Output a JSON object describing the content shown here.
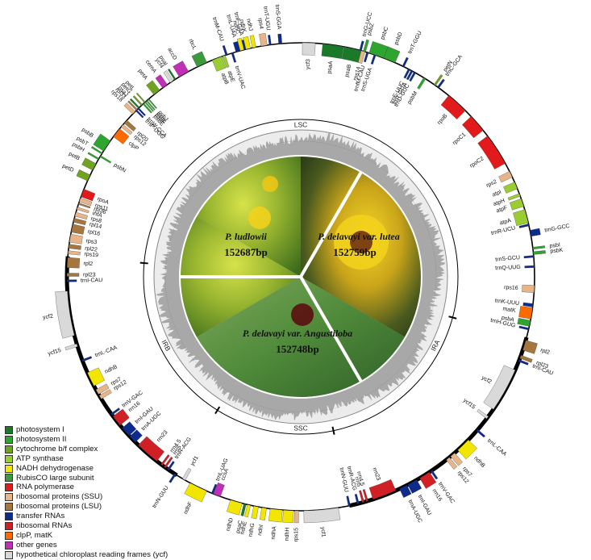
{
  "center": {
    "species": [
      {
        "name": "P. ludlowii",
        "length": "152687bp"
      },
      {
        "name": "P. delavayi var. lutea",
        "length": "152759bp"
      },
      {
        "name": "P. delavayi var. Angustiloba",
        "length": "152748bp"
      }
    ]
  },
  "regions": [
    "LSC",
    "IRA",
    "SSC",
    "IRB"
  ],
  "legend": [
    {
      "label": "photosystem I",
      "color": "#1a7a2a"
    },
    {
      "label": "photosystem II",
      "color": "#2ea52e"
    },
    {
      "label": "cytochrome b/f complex",
      "color": "#6fa320"
    },
    {
      "label": "ATP synthase",
      "color": "#9acd32"
    },
    {
      "label": "NADH dehydrogenase",
      "color": "#f2e600"
    },
    {
      "label": "RubisCO large subunit",
      "color": "#3c9a3c"
    },
    {
      "label": "RNA polymerase",
      "color": "#e31a1c"
    },
    {
      "label": "ribosomal proteins (SSU)",
      "color": "#e8b48a"
    },
    {
      "label": "ribosomal proteins (LSU)",
      "color": "#a5773f"
    },
    {
      "label": "transfer RNAs",
      "color": "#0d2b8c"
    },
    {
      "label": "ribosomal RNAs",
      "color": "#d11f26"
    },
    {
      "label": "clpP, matK",
      "color": "#ff6a00"
    },
    {
      "label": "other genes",
      "color": "#c12fb6"
    },
    {
      "label": "hypothetical chloroplast reading frames (ycf)",
      "color": "#d9d9d9"
    }
  ],
  "genes": [
    {
      "name": "trnS-GGA",
      "cat": "trna",
      "pos": 355,
      "len": 0.8,
      "side": "out"
    },
    {
      "name": "ycf3",
      "cat": "ycf",
      "pos": 2,
      "len": 3.2,
      "side": "in"
    },
    {
      "name": "psaA",
      "cat": "ps1",
      "pos": 8,
      "len": 5.2,
      "side": "in"
    },
    {
      "name": "psaB",
      "cat": "ps1",
      "pos": 13,
      "len": 4.6,
      "side": "in"
    },
    {
      "name": "rps14",
      "cat": "ssu",
      "pos": 15.5,
      "len": 1.0,
      "side": "in"
    },
    {
      "name": "trnfM-CAU",
      "cat": "trna",
      "pos": 16.6,
      "len": 0.5,
      "side": "in"
    },
    {
      "name": "trnS-UGA",
      "cat": "trna",
      "pos": 18.5,
      "len": 0.5,
      "side": "in"
    },
    {
      "name": "trnG-UCC",
      "cat": "trna",
      "pos": 14.8,
      "len": 0.5,
      "side": "out"
    },
    {
      "name": "psbZ",
      "cat": "ps2",
      "pos": 15.8,
      "len": 0.6,
      "side": "out"
    },
    {
      "name": "psbC",
      "cat": "ps2",
      "pos": 19,
      "len": 4.0,
      "side": "out"
    },
    {
      "name": "psbD",
      "cat": "ps2",
      "pos": 22.3,
      "len": 3.0,
      "side": "out"
    },
    {
      "name": "trnT-GGU",
      "cat": "trna",
      "pos": 26,
      "len": 0.5,
      "side": "out"
    },
    {
      "name": "trnE-UUC",
      "cat": "trna",
      "pos": 27.6,
      "len": 0.5,
      "side": "in"
    },
    {
      "name": "trnY-GUA",
      "cat": "trna",
      "pos": 28.4,
      "len": 0.5,
      "side": "in"
    },
    {
      "name": "trnD-GUC",
      "cat": "trna",
      "pos": 29.2,
      "len": 0.5,
      "side": "in"
    },
    {
      "name": "psbM",
      "cat": "ps2",
      "pos": 32,
      "len": 0.6,
      "side": "in"
    },
    {
      "name": "petN",
      "cat": "cyt",
      "pos": 35,
      "len": 0.5,
      "side": "out"
    },
    {
      "name": "trnC-GCA",
      "cat": "trna",
      "pos": 36,
      "len": 0.5,
      "side": "out"
    },
    {
      "name": "rpoB",
      "cat": "rnap",
      "pos": 42,
      "len": 5.5,
      "side": "in"
    },
    {
      "name": "rpoC1",
      "cat": "rnap",
      "pos": 49,
      "len": 4.5,
      "side": "in"
    },
    {
      "name": "rpoC2",
      "cat": "rnap",
      "pos": 57,
      "len": 8.0,
      "side": "in"
    },
    {
      "name": "rps2",
      "cat": "ssu",
      "pos": 64,
      "len": 1.6,
      "side": "in"
    },
    {
      "name": "atpI",
      "cat": "atp",
      "pos": 67,
      "len": 1.8,
      "side": "in"
    },
    {
      "name": "atpH",
      "cat": "atp",
      "pos": 69.5,
      "len": 0.7,
      "side": "in"
    },
    {
      "name": "atpF",
      "cat": "atp",
      "pos": 71.5,
      "len": 2.0,
      "side": "in"
    },
    {
      "name": "atpA",
      "cat": "atp",
      "pos": 75,
      "len": 3.4,
      "side": "in"
    },
    {
      "name": "trnR-UCU",
      "cat": "trna",
      "pos": 77.2,
      "len": 0.5,
      "side": "in"
    },
    {
      "name": "trnG-GCC",
      "cat": "trna",
      "pos": 79.3,
      "len": 1.5,
      "side": "out"
    },
    {
      "name": "psbI",
      "cat": "ps2",
      "pos": 83,
      "len": 0.5,
      "side": "out"
    },
    {
      "name": "psbK",
      "cat": "ps2",
      "pos": 84.2,
      "len": 0.7,
      "side": "out"
    },
    {
      "name": "trnS-GCU",
      "cat": "trna",
      "pos": 85,
      "len": 0.5,
      "side": "in"
    },
    {
      "name": "trnQ-UUG",
      "cat": "trna",
      "pos": 87.5,
      "len": 0.5,
      "side": "in"
    },
    {
      "name": "rps16",
      "cat": "ssu",
      "pos": 93,
      "len": 1.8,
      "side": "in"
    },
    {
      "name": "trnK-UUU",
      "cat": "trna",
      "pos": 97,
      "len": 0.8,
      "side": "in"
    },
    {
      "name": "matK",
      "cat": "mat",
      "pos": 99,
      "len": 2.8,
      "side": "in"
    },
    {
      "name": "psbA",
      "cat": "ps2",
      "pos": 101.5,
      "len": 1.5,
      "side": "in"
    },
    {
      "name": "trnH-GUG",
      "cat": "trna",
      "pos": 102.9,
      "len": 0.5,
      "side": "in"
    },
    {
      "name": "rpl2",
      "cat": "lsu",
      "pos": 107,
      "len": 2.5,
      "side": "out"
    },
    {
      "name": "rpl23",
      "cat": "lsu",
      "pos": 110,
      "len": 0.8,
      "side": "out"
    },
    {
      "name": "trnI-CAU",
      "cat": "trna",
      "pos": 111,
      "len": 0.5,
      "side": "out"
    },
    {
      "name": "ycf2",
      "cat": "ycf",
      "pos": 119,
      "len": 11,
      "side": "in"
    },
    {
      "name": "ycf15",
      "cat": "ycf",
      "pos": 127,
      "len": 0.7,
      "side": "in"
    },
    {
      "name": "trnL-CAA",
      "cat": "trna",
      "pos": 131,
      "len": 0.5,
      "side": "out"
    },
    {
      "name": "ndhB",
      "cat": "ndh",
      "pos": 136,
      "len": 3.6,
      "side": "out"
    },
    {
      "name": "rps7",
      "cat": "ssu",
      "pos": 139.5,
      "len": 1.3,
      "side": "out"
    },
    {
      "name": "rps12",
      "cat": "ssu",
      "pos": 141,
      "len": 1.0,
      "side": "out"
    },
    {
      "name": "trnV-GAC",
      "cat": "trna",
      "pos": 146,
      "len": 0.5,
      "side": "out"
    },
    {
      "name": "rrn16",
      "cat": "rrna",
      "pos": 148,
      "len": 2.8,
      "side": "out"
    },
    {
      "name": "trnI-GAU",
      "cat": "trna",
      "pos": 151.5,
      "len": 2.5,
      "side": "out"
    },
    {
      "name": "trnA-UGC",
      "cat": "trna",
      "pos": 154,
      "len": 2.0,
      "side": "out"
    },
    {
      "name": "rrn23",
      "cat": "rrna",
      "pos": 159,
      "len": 6.0,
      "side": "in"
    },
    {
      "name": "rrn4.5",
      "cat": "rrna",
      "pos": 163.5,
      "len": 0.5,
      "side": "in"
    },
    {
      "name": "rrn5",
      "cat": "rrna",
      "pos": 164.5,
      "len": 0.5,
      "side": "in"
    },
    {
      "name": "trnR-ACG",
      "cat": "trna",
      "pos": 165.8,
      "len": 0.5,
      "side": "in"
    },
    {
      "name": "trnN-GUU",
      "cat": "trna",
      "pos": 168,
      "len": 0.5,
      "side": "in"
    },
    {
      "name": "ycf1",
      "cat": "ycf",
      "pos": 175,
      "len": 8.5,
      "side": "out"
    },
    {
      "name": "rps15",
      "cat": "ssu",
      "pos": 181,
      "len": 1.0,
      "side": "out"
    },
    {
      "name": "ndhH",
      "cat": "ndh",
      "pos": 183,
      "len": 2.5,
      "side": "out"
    },
    {
      "name": "ndhA",
      "cat": "ndh",
      "pos": 186,
      "len": 3.0,
      "side": "out"
    },
    {
      "name": "ndhI",
      "cat": "ndh",
      "pos": 189,
      "len": 1.2,
      "side": "out"
    },
    {
      "name": "ndhG",
      "cat": "ndh",
      "pos": 191,
      "len": 1.2,
      "side": "out"
    },
    {
      "name": "ndhE",
      "cat": "ndh",
      "pos": 192.8,
      "len": 0.8,
      "side": "out"
    },
    {
      "name": "psaC",
      "cat": "ps1",
      "pos": 193.8,
      "len": 0.6,
      "side": "out"
    },
    {
      "name": "ndhD",
      "cat": "ndh",
      "pos": 196,
      "len": 3.0,
      "side": "out"
    },
    {
      "name": "ccsA",
      "cat": "other",
      "pos": 201,
      "len": 1.8,
      "side": "in"
    },
    {
      "name": "trnL-UAG",
      "cat": "trna",
      "pos": 202.2,
      "len": 0.5,
      "side": "in"
    },
    {
      "name": "ndhF",
      "cat": "ndh",
      "pos": 206,
      "len": 4.5,
      "side": "out"
    },
    {
      "name": "ycf1",
      "cat": "ycf",
      "pos": 210,
      "len": 0.8,
      "side": "in"
    },
    {
      "name": "trnN-GUU",
      "cat": "trna",
      "pos": 212.5,
      "len": 0.5,
      "side": "out"
    },
    {
      "name": "trnR-ACG",
      "cat": "trna",
      "pos": 214.5,
      "len": 0.5,
      "side": "in"
    },
    {
      "name": "rrn5",
      "cat": "rrna",
      "pos": 215.5,
      "len": 0.5,
      "side": "in"
    },
    {
      "name": "rrn4.5",
      "cat": "rrna",
      "pos": 216.5,
      "len": 0.5,
      "side": "in"
    },
    {
      "name": "rrn23",
      "cat": "rrna",
      "pos": 221,
      "len": 6.0,
      "side": "in"
    },
    {
      "name": "trnA-UGC",
      "cat": "trna",
      "pos": 226,
      "len": 2.0,
      "side": "in"
    },
    {
      "name": "trnI-GAU",
      "cat": "trna",
      "pos": 228.5,
      "len": 2.5,
      "side": "in"
    },
    {
      "name": "rrn16",
      "cat": "rrna",
      "pos": 232,
      "len": 2.8,
      "side": "in"
    },
    {
      "name": "trnV-GAC",
      "cat": "trna",
      "pos": 234,
      "len": 0.5,
      "side": "in"
    },
    {
      "name": "rps12",
      "cat": "ssu",
      "pos": 239,
      "len": 1.0,
      "side": "in"
    },
    {
      "name": "rps7",
      "cat": "ssu",
      "pos": 240.5,
      "len": 1.3,
      "side": "in"
    },
    {
      "name": "ndhB",
      "cat": "ndh",
      "pos": 244,
      "len": 3.6,
      "side": "in"
    },
    {
      "name": "trnL-CAA",
      "cat": "trna",
      "pos": 249,
      "len": 0.5,
      "side": "in"
    },
    {
      "name": "ycf15",
      "cat": "ycf",
      "pos": 253,
      "len": 0.7,
      "side": "out"
    },
    {
      "name": "ycf2",
      "cat": "ycf",
      "pos": 261,
      "len": 11,
      "side": "out"
    },
    {
      "name": "trnI-CAU",
      "cat": "trna",
      "pos": 269,
      "len": 0.5,
      "side": "in"
    },
    {
      "name": "rpl23",
      "cat": "lsu",
      "pos": 270.5,
      "len": 0.8,
      "side": "in"
    },
    {
      "name": "rpl2",
      "cat": "lsu",
      "pos": 273.5,
      "len": 2.5,
      "side": "in"
    },
    {
      "name": "rps19",
      "cat": "ssu",
      "pos": 276,
      "len": 0.8,
      "side": "in"
    },
    {
      "name": "rpl22",
      "cat": "lsu",
      "pos": 277.5,
      "len": 1.0,
      "side": "in"
    },
    {
      "name": "rps3",
      "cat": "ssu",
      "pos": 279.5,
      "len": 2.0,
      "side": "in"
    },
    {
      "name": "rpl16",
      "cat": "lsu",
      "pos": 282,
      "len": 2.0,
      "side": "in"
    },
    {
      "name": "rpl14",
      "cat": "lsu",
      "pos": 284,
      "len": 1.0,
      "side": "in"
    },
    {
      "name": "rps8",
      "cat": "ssu",
      "pos": 285.5,
      "len": 1.0,
      "side": "in"
    },
    {
      "name": "infA",
      "cat": "ssu",
      "pos": 287,
      "len": 0.6,
      "side": "in"
    },
    {
      "name": "rpl36",
      "cat": "lsu",
      "pos": 288.2,
      "len": 0.4,
      "side": "in"
    },
    {
      "name": "rps11",
      "cat": "ssu",
      "pos": 289.2,
      "len": 1.0,
      "side": "in"
    },
    {
      "name": "rpoA",
      "cat": "rnap",
      "pos": 291,
      "len": 2.0,
      "side": "in"
    },
    {
      "name": "petD",
      "cat": "cyt",
      "pos": 295,
      "len": 1.6,
      "side": "out"
    },
    {
      "name": "petB",
      "cat": "cyt",
      "pos": 298,
      "len": 1.8,
      "side": "out"
    },
    {
      "name": "psbH",
      "cat": "ps2",
      "pos": 300.2,
      "len": 0.4,
      "side": "out"
    },
    {
      "name": "psbN",
      "cat": "ps2",
      "pos": 301,
      "len": 0.4,
      "side": "in"
    },
    {
      "name": "psbT",
      "cat": "ps2",
      "pos": 301.8,
      "len": 0.4,
      "side": "out"
    },
    {
      "name": "psbB",
      "cat": "ps2",
      "pos": 304,
      "len": 3.0,
      "side": "out"
    },
    {
      "name": "clpP",
      "cat": "mat",
      "pos": 308,
      "len": 2.5,
      "side": "in"
    },
    {
      "name": "rps12",
      "cat": "ssu",
      "pos": 310.2,
      "len": 0.8,
      "side": "in"
    },
    {
      "name": "rpl20",
      "cat": "lsu",
      "pos": 311.5,
      "len": 1.0,
      "side": "in"
    },
    {
      "name": "rps18",
      "cat": "ssu",
      "pos": 314.5,
      "len": 0.9,
      "side": "out"
    },
    {
      "name": "rpl33",
      "cat": "lsu",
      "pos": 315.5,
      "len": 0.4,
      "side": "out"
    },
    {
      "name": "psaJ",
      "cat": "ps1",
      "pos": 316.2,
      "len": 0.4,
      "side": "out"
    },
    {
      "name": "trnP-UGG",
      "cat": "trna",
      "pos": 315.3,
      "len": 0.4,
      "side": "in"
    },
    {
      "name": "trnW-CCA",
      "cat": "trna",
      "pos": 316,
      "len": 0.4,
      "side": "in"
    },
    {
      "name": "petG",
      "cat": "cyt",
      "pos": 317.2,
      "len": 0.4,
      "side": "out"
    },
    {
      "name": "psbE",
      "cat": "ps2",
      "pos": 317.7,
      "len": 0.4,
      "side": "in"
    },
    {
      "name": "psbF",
      "cat": "ps2",
      "pos": 318.3,
      "len": 0.3,
      "side": "in"
    },
    {
      "name": "petL",
      "cat": "cyt",
      "pos": 318.2,
      "len": 0.3,
      "side": "out"
    },
    {
      "name": "psbL",
      "cat": "ps2",
      "pos": 318.8,
      "len": 0.3,
      "side": "in"
    },
    {
      "name": "psbJ",
      "cat": "ps2",
      "pos": 319.4,
      "len": 0.3,
      "side": "in"
    },
    {
      "name": "petA",
      "cat": "cyt",
      "pos": 322,
      "len": 1.8,
      "side": "out"
    },
    {
      "name": "cemA",
      "cat": "other",
      "pos": 324.5,
      "len": 1.4,
      "side": "out"
    },
    {
      "name": "ycf4",
      "cat": "ycf",
      "pos": 326.5,
      "len": 0.9,
      "side": "out"
    },
    {
      "name": "psaI",
      "cat": "ps1",
      "pos": 327.5,
      "len": 0.4,
      "side": "out"
    },
    {
      "name": "accD",
      "cat": "other",
      "pos": 330,
      "len": 2.6,
      "side": "out"
    },
    {
      "name": "rbcL",
      "cat": "rbc",
      "pos": 335,
      "len": 2.6,
      "side": "out"
    },
    {
      "name": "atpB",
      "cat": "atp",
      "pos": 339,
      "len": 2.5,
      "side": "in"
    },
    {
      "name": "atpE",
      "cat": "atp",
      "pos": 340.8,
      "len": 0.7,
      "side": "in"
    },
    {
      "name": "trnM-CAU",
      "cat": "trna",
      "pos": 341.5,
      "len": 0.5,
      "side": "out"
    },
    {
      "name": "trnV-UAC",
      "cat": "trna",
      "pos": 343,
      "len": 0.5,
      "side": "in"
    },
    {
      "name": "trnL-UAA",
      "cat": "trna",
      "pos": 344.5,
      "len": 1.2,
      "side": "out"
    },
    {
      "name": "ndhC",
      "cat": "ndh",
      "pos": 345.5,
      "len": 1.0,
      "side": "out"
    },
    {
      "name": "ndhK",
      "cat": "ndh",
      "pos": 347,
      "len": 1.2,
      "side": "out"
    },
    {
      "name": "ndhJ",
      "cat": "ndh",
      "pos": 348.5,
      "len": 0.9,
      "side": "out"
    },
    {
      "name": "trnF-GAA",
      "cat": "trna",
      "pos": 346.2,
      "len": 0.5,
      "side": "out"
    },
    {
      "name": "rps4",
      "cat": "ssu",
      "pos": 351,
      "len": 1.5,
      "side": "out"
    },
    {
      "name": "trnT-UGU",
      "cat": "trna",
      "pos": 352.5,
      "len": 0.5,
      "side": "out"
    }
  ],
  "colors": {
    "ps1": "#1a7a2a",
    "ps2": "#2ea52e",
    "cyt": "#6fa320",
    "atp": "#9acd32",
    "ndh": "#f2e600",
    "rbc": "#3c9a3c",
    "rnap": "#e31a1c",
    "ssu": "#e8b48a",
    "lsu": "#a5773f",
    "trna": "#0d2b8c",
    "rrna": "#d11f26",
    "mat": "#ff6a00",
    "other": "#c12fb6",
    "ycf": "#d9d9d9"
  }
}
